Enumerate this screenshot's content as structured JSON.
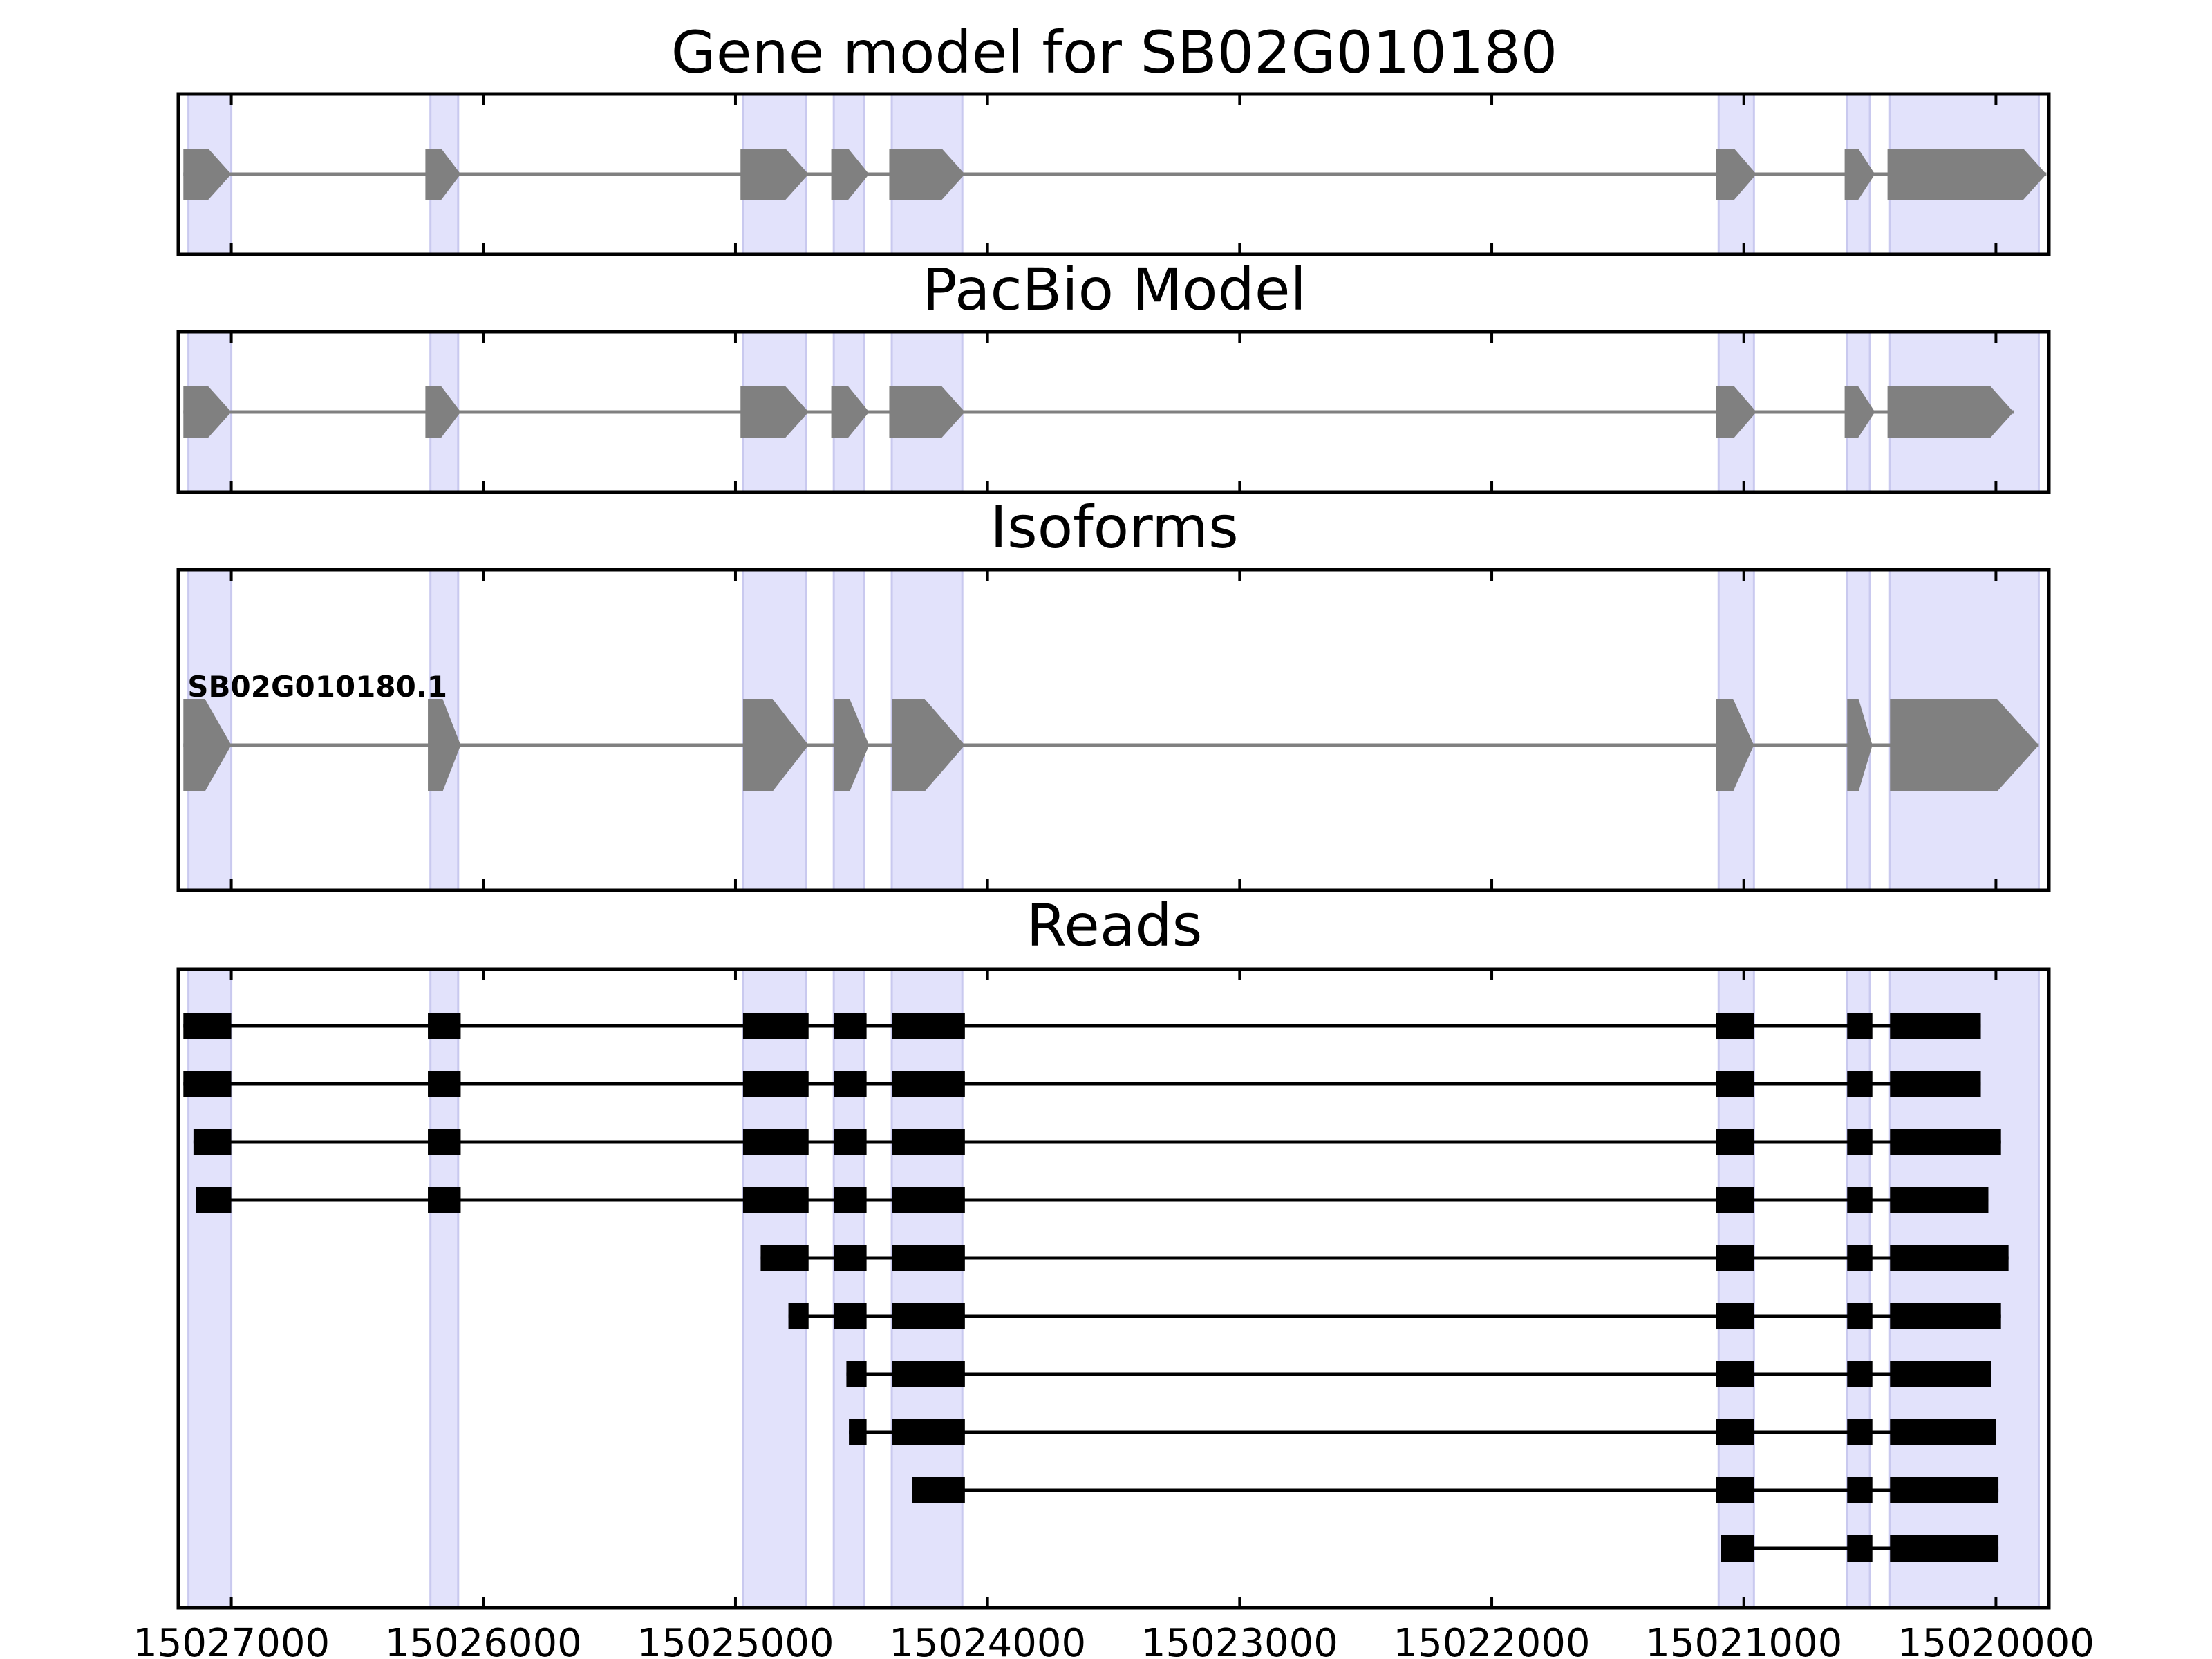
{
  "colors": {
    "exon_band": "#e2e2fb",
    "exon_band_edge": "#c9c9ef",
    "gene_shape": "#808080",
    "read": "#000000",
    "frame": "#000000"
  },
  "chart_data": {
    "type": "gene-model",
    "x_axis": {
      "reversed": true,
      "range": [
        15027210,
        15019790
      ],
      "ticks": [
        15027000,
        15026000,
        15025000,
        15024000,
        15023000,
        15022000,
        15021000,
        15020000
      ],
      "tick_labels": [
        "15027000",
        "15026000",
        "15025000",
        "15024000",
        "15023000",
        "15022000",
        "15021000",
        "15020000"
      ]
    },
    "exon_regions": [
      [
        15027170,
        15027000
      ],
      [
        15026210,
        15026100
      ],
      [
        15024970,
        15024720
      ],
      [
        15024610,
        15024490
      ],
      [
        15024380,
        15024100
      ],
      [
        15021100,
        15020960
      ],
      [
        15020590,
        15020500
      ],
      [
        15020420,
        15019830
      ]
    ],
    "panels": [
      {
        "id": "gene-model",
        "title": "Gene model for SB02G010180",
        "tracks": [
          {
            "label": "",
            "exons": [
              [
                15027190,
                15027000
              ],
              [
                15026230,
                15026090
              ],
              [
                15024980,
                15024710
              ],
              [
                15024620,
                15024470
              ],
              [
                15024390,
                15024090
              ],
              [
                15021110,
                15020950
              ],
              [
                15020600,
                15020480
              ],
              [
                15020430,
                15019800
              ]
            ]
          }
        ]
      },
      {
        "id": "pacbio-model",
        "title": "PacBio Model",
        "tracks": [
          {
            "label": "",
            "exons": [
              [
                15027190,
                15027000
              ],
              [
                15026230,
                15026090
              ],
              [
                15024980,
                15024710
              ],
              [
                15024620,
                15024470
              ],
              [
                15024390,
                15024090
              ],
              [
                15021110,
                15020950
              ],
              [
                15020600,
                15020480
              ],
              [
                15020430,
                15019930
              ]
            ]
          }
        ]
      },
      {
        "id": "isoforms",
        "title": "Isoforms",
        "tracks": [
          {
            "label": "SB02G010180.1",
            "exons": [
              [
                15027190,
                15027000
              ],
              [
                15026220,
                15026090
              ],
              [
                15024970,
                15024710
              ],
              [
                15024610,
                15024470
              ],
              [
                15024380,
                15024090
              ],
              [
                15021110,
                15020960
              ],
              [
                15020590,
                15020490
              ],
              [
                15020420,
                15019830
              ]
            ]
          }
        ]
      },
      {
        "id": "reads",
        "title": "Reads",
        "tracks": [
          {
            "label": "",
            "exons": [
              [
                15027190,
                15027000
              ],
              [
                15026220,
                15026090
              ],
              [
                15024970,
                15024710
              ],
              [
                15024610,
                15024480
              ],
              [
                15024380,
                15024090
              ],
              [
                15021110,
                15020960
              ],
              [
                15020590,
                15020490
              ],
              [
                15020420,
                15020060
              ]
            ]
          },
          {
            "label": "",
            "exons": [
              [
                15027190,
                15027000
              ],
              [
                15026220,
                15026090
              ],
              [
                15024970,
                15024710
              ],
              [
                15024610,
                15024480
              ],
              [
                15024380,
                15024090
              ],
              [
                15021110,
                15020960
              ],
              [
                15020590,
                15020490
              ],
              [
                15020420,
                15020060
              ]
            ]
          },
          {
            "label": "",
            "exons": [
              [
                15027150,
                15027000
              ],
              [
                15026220,
                15026090
              ],
              [
                15024970,
                15024710
              ],
              [
                15024610,
                15024480
              ],
              [
                15024380,
                15024090
              ],
              [
                15021110,
                15020960
              ],
              [
                15020590,
                15020490
              ],
              [
                15020420,
                15019980
              ]
            ]
          },
          {
            "label": "",
            "exons": [
              [
                15027140,
                15027000
              ],
              [
                15026220,
                15026090
              ],
              [
                15024970,
                15024710
              ],
              [
                15024610,
                15024480
              ],
              [
                15024380,
                15024090
              ],
              [
                15021110,
                15020960
              ],
              [
                15020590,
                15020490
              ],
              [
                15020420,
                15020030
              ]
            ]
          },
          {
            "label": "",
            "exons": [
              [
                15024900,
                15024710
              ],
              [
                15024610,
                15024480
              ],
              [
                15024380,
                15024090
              ],
              [
                15021110,
                15020960
              ],
              [
                15020590,
                15020490
              ],
              [
                15020420,
                15019950
              ]
            ]
          },
          {
            "label": "",
            "exons": [
              [
                15024790,
                15024710
              ],
              [
                15024610,
                15024480
              ],
              [
                15024380,
                15024090
              ],
              [
                15021110,
                15020960
              ],
              [
                15020590,
                15020490
              ],
              [
                15020420,
                15019980
              ]
            ]
          },
          {
            "label": "",
            "exons": [
              [
                15024560,
                15024480
              ],
              [
                15024380,
                15024090
              ],
              [
                15021110,
                15020960
              ],
              [
                15020590,
                15020490
              ],
              [
                15020420,
                15020020
              ]
            ]
          },
          {
            "label": "",
            "exons": [
              [
                15024550,
                15024480
              ],
              [
                15024380,
                15024090
              ],
              [
                15021110,
                15020960
              ],
              [
                15020590,
                15020490
              ],
              [
                15020420,
                15020000
              ]
            ]
          },
          {
            "label": "",
            "exons": [
              [
                15024300,
                15024090
              ],
              [
                15021110,
                15020960
              ],
              [
                15020590,
                15020490
              ],
              [
                15020420,
                15019990
              ]
            ]
          },
          {
            "label": "",
            "exons": [
              [
                15021090,
                15020960
              ],
              [
                15020590,
                15020490
              ],
              [
                15020420,
                15019990
              ]
            ]
          }
        ]
      }
    ]
  }
}
